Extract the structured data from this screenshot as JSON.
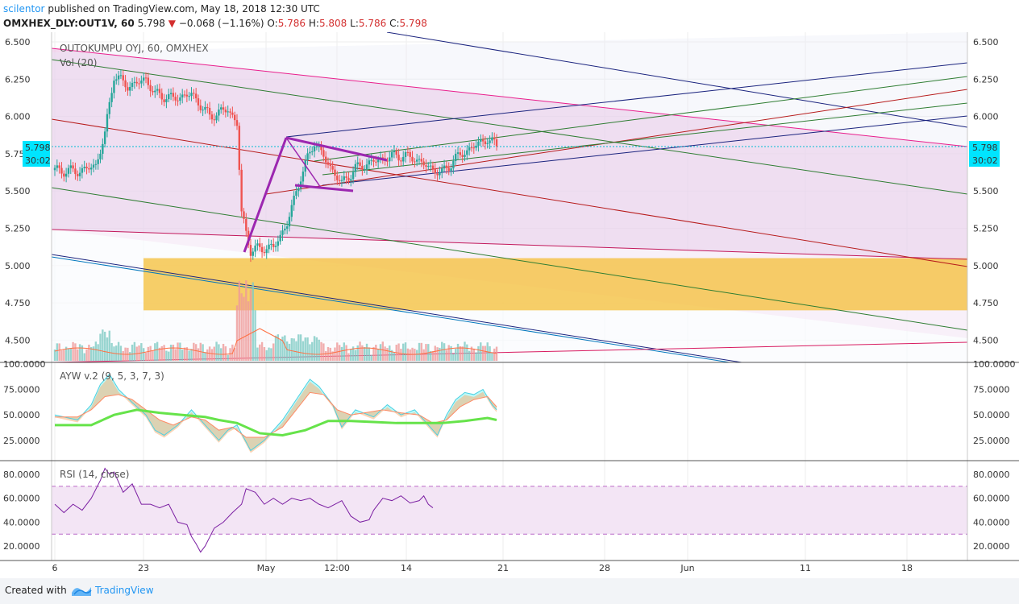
{
  "header": {
    "author": "scilentor",
    "published_text": "published on TradingView.com, May 18, 2018 12:30 UTC",
    "symbol": "OMXHEX_DLY:OUT1V, 60",
    "last_price": "5.798",
    "change_arrow": "▼",
    "change": "−0.068 (−1.16%)",
    "open_label": "O:",
    "open": "5.786",
    "high_label": "H:",
    "high": "5.808",
    "low_label": "L:",
    "low": "5.786",
    "close_label": "C:",
    "close": "5.798"
  },
  "main_pane": {
    "title": "OUTOKUMPU OYJ, 60, OMXHEX",
    "vol_label": "Vol (20)",
    "price_tag": "5.798",
    "countdown_tag": "30:02",
    "y_ticks": [
      "6.500",
      "6.250",
      "6.000",
      "5.750",
      "5.500",
      "5.250",
      "5.000",
      "4.750",
      "4.500"
    ]
  },
  "ayw_pane": {
    "title": "AYW v.2 (9, 5, 3, 7, 3)",
    "y_ticks": [
      "100.0000",
      "75.0000",
      "50.0000",
      "25.0000"
    ]
  },
  "rsi_pane": {
    "title": "RSI (14, close)",
    "y_ticks": [
      "80.0000",
      "60.0000",
      "40.0000",
      "20.0000"
    ]
  },
  "time_axis": {
    "ticks": [
      "6",
      "23",
      "May",
      "12:00",
      "14",
      "21",
      "28",
      "Jun",
      "11",
      "18"
    ]
  },
  "footer": {
    "created_with": "Created with",
    "brand": "TradingView"
  },
  "colors": {
    "up": "#26a69a",
    "down": "#ef5350",
    "price_tag_bg": "#00e5ff",
    "support_zone": "#f5c242",
    "rsi_line": "#7b1fa2",
    "rsi_band": "#f3e5f5",
    "ayw_green": "#66e34a",
    "ayw_cyan": "#8ef5f5",
    "ayw_orange": "#f7b27a",
    "pattern_purple": "#9c27b0"
  },
  "chart_data": [
    {
      "type": "candlestick",
      "title": "OUTOKUMPU OYJ, 60, OMXHEX",
      "ylim": [
        4.45,
        6.52
      ],
      "anchors": [
        {
          "t": 0,
          "p": 5.64
        },
        {
          "t": 5,
          "p": 5.63
        },
        {
          "t": 9,
          "p": 5.67
        },
        {
          "t": 11,
          "p": 5.88
        },
        {
          "t": 13,
          "p": 6.28
        },
        {
          "t": 16,
          "p": 6.2
        },
        {
          "t": 20,
          "p": 6.25
        },
        {
          "t": 22,
          "p": 6.15
        },
        {
          "t": 26,
          "p": 6.12
        },
        {
          "t": 30,
          "p": 6.15
        },
        {
          "t": 34,
          "p": 6.0
        },
        {
          "t": 38,
          "p": 6.05
        },
        {
          "t": 40,
          "p": 5.95
        },
        {
          "t": 41,
          "p": 5.35
        },
        {
          "t": 43,
          "p": 5.1
        },
        {
          "t": 46,
          "p": 5.12
        },
        {
          "t": 48,
          "p": 5.12
        },
        {
          "t": 51,
          "p": 5.28
        },
        {
          "t": 54,
          "p": 5.6
        },
        {
          "t": 57,
          "p": 5.83
        },
        {
          "t": 60,
          "p": 5.68
        },
        {
          "t": 63,
          "p": 5.55
        },
        {
          "t": 66,
          "p": 5.65
        },
        {
          "t": 70,
          "p": 5.7
        },
        {
          "t": 75,
          "p": 5.74
        },
        {
          "t": 79,
          "p": 5.72
        },
        {
          "t": 82,
          "p": 5.66
        },
        {
          "t": 85,
          "p": 5.62
        },
        {
          "t": 88,
          "p": 5.72
        },
        {
          "t": 92,
          "p": 5.8
        },
        {
          "t": 95,
          "p": 5.85
        },
        {
          "t": 97,
          "p": 5.8
        }
      ],
      "support_zone": [
        4.7,
        5.05
      ],
      "last": 5.798
    },
    {
      "type": "area",
      "title": "AYW v.2 (9, 5, 3, 7, 3)",
      "ylim": [
        0,
        100
      ],
      "green": [
        [
          0,
          40
        ],
        [
          8,
          40
        ],
        [
          13,
          50
        ],
        [
          18,
          55
        ],
        [
          23,
          52
        ],
        [
          28,
          50
        ],
        [
          33,
          48
        ],
        [
          36,
          45
        ],
        [
          40,
          42
        ],
        [
          45,
          32
        ],
        [
          50,
          30
        ],
        [
          55,
          35
        ],
        [
          60,
          44
        ],
        [
          65,
          44
        ],
        [
          70,
          43
        ],
        [
          75,
          42
        ],
        [
          80,
          42
        ],
        [
          85,
          42
        ],
        [
          90,
          44
        ],
        [
          95,
          47
        ],
        [
          97,
          45
        ]
      ],
      "fast": [
        [
          0,
          50
        ],
        [
          5,
          45
        ],
        [
          8,
          60
        ],
        [
          10,
          80
        ],
        [
          12,
          90
        ],
        [
          14,
          75
        ],
        [
          17,
          62
        ],
        [
          20,
          50
        ],
        [
          22,
          35
        ],
        [
          24,
          30
        ],
        [
          27,
          40
        ],
        [
          30,
          55
        ],
        [
          33,
          40
        ],
        [
          36,
          25
        ],
        [
          38,
          35
        ],
        [
          40,
          40
        ],
        [
          43,
          15
        ],
        [
          46,
          25
        ],
        [
          50,
          45
        ],
        [
          53,
          65
        ],
        [
          56,
          85
        ],
        [
          58,
          78
        ],
        [
          61,
          60
        ],
        [
          63,
          38
        ],
        [
          66,
          55
        ],
        [
          70,
          48
        ],
        [
          73,
          60
        ],
        [
          76,
          50
        ],
        [
          79,
          55
        ],
        [
          82,
          40
        ],
        [
          84,
          30
        ],
        [
          86,
          50
        ],
        [
          88,
          65
        ],
        [
          90,
          72
        ],
        [
          92,
          70
        ],
        [
          94,
          75
        ],
        [
          96,
          60
        ],
        [
          97,
          55
        ]
      ],
      "slow": [
        [
          0,
          48
        ],
        [
          5,
          48
        ],
        [
          8,
          55
        ],
        [
          11,
          68
        ],
        [
          14,
          70
        ],
        [
          17,
          65
        ],
        [
          20,
          55
        ],
        [
          23,
          45
        ],
        [
          26,
          40
        ],
        [
          30,
          48
        ],
        [
          33,
          45
        ],
        [
          36,
          35
        ],
        [
          39,
          38
        ],
        [
          42,
          28
        ],
        [
          46,
          28
        ],
        [
          50,
          38
        ],
        [
          53,
          55
        ],
        [
          56,
          72
        ],
        [
          59,
          70
        ],
        [
          62,
          55
        ],
        [
          65,
          50
        ],
        [
          68,
          52
        ],
        [
          72,
          55
        ],
        [
          76,
          52
        ],
        [
          80,
          50
        ],
        [
          83,
          42
        ],
        [
          86,
          45
        ],
        [
          89,
          58
        ],
        [
          92,
          65
        ],
        [
          95,
          68
        ],
        [
          97,
          58
        ]
      ]
    },
    {
      "type": "line",
      "title": "RSI (14, close)",
      "ylim": [
        10,
        90
      ],
      "bands": [
        30,
        70
      ],
      "points": [
        [
          0,
          55
        ],
        [
          2,
          48
        ],
        [
          4,
          55
        ],
        [
          6,
          50
        ],
        [
          8,
          60
        ],
        [
          10,
          75
        ],
        [
          11,
          85
        ],
        [
          12,
          80
        ],
        [
          13,
          82
        ],
        [
          15,
          65
        ],
        [
          17,
          72
        ],
        [
          19,
          55
        ],
        [
          21,
          55
        ],
        [
          23,
          52
        ],
        [
          25,
          55
        ],
        [
          27,
          40
        ],
        [
          29,
          38
        ],
        [
          30,
          28
        ],
        [
          31,
          22
        ],
        [
          32,
          15
        ],
        [
          33,
          20
        ],
        [
          35,
          35
        ],
        [
          37,
          40
        ],
        [
          39,
          48
        ],
        [
          41,
          55
        ],
        [
          42,
          68
        ],
        [
          44,
          65
        ],
        [
          46,
          55
        ],
        [
          48,
          60
        ],
        [
          50,
          55
        ],
        [
          52,
          60
        ],
        [
          54,
          58
        ],
        [
          56,
          60
        ],
        [
          58,
          55
        ],
        [
          60,
          52
        ],
        [
          62,
          56
        ],
        [
          63,
          58
        ],
        [
          65,
          45
        ],
        [
          67,
          40
        ],
        [
          69,
          42
        ],
        [
          70,
          50
        ],
        [
          72,
          60
        ],
        [
          74,
          58
        ],
        [
          76,
          62
        ],
        [
          78,
          56
        ],
        [
          80,
          58
        ],
        [
          81,
          62
        ],
        [
          82,
          55
        ],
        [
          83,
          52
        ]
      ]
    }
  ]
}
